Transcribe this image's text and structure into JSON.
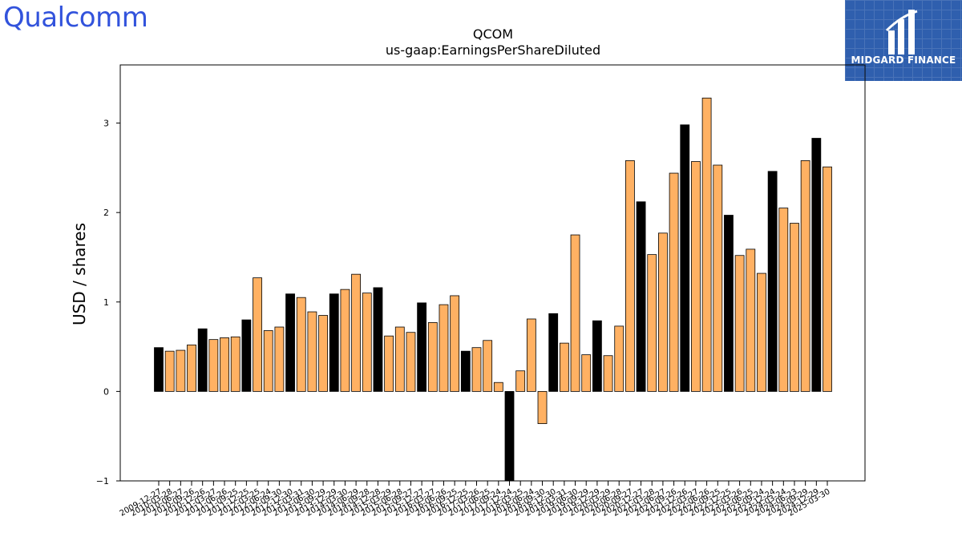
{
  "brand": {
    "logo_text": "Qualcomm",
    "badge_text": "MIDGARD FINANCE",
    "badge_icon": "midgard-logo-icon"
  },
  "colors": {
    "annual": "#000000",
    "quarterly": "#ffb163",
    "brand_blue": "#3253dc",
    "badge_bg": "#2f5fae"
  },
  "chart_data": {
    "type": "bar",
    "title": "QCOM",
    "subtitle": "us-gaap:EarningsPerShareDiluted",
    "xlabel": "",
    "ylabel": "USD / shares",
    "ylim": [
      -1.0,
      3.65
    ],
    "yticks": [
      -1,
      0,
      1,
      2,
      3
    ],
    "grid": false,
    "categories": [
      "2009-12-27",
      "2010-03-28",
      "2010-06-27",
      "2010-09-26",
      "2010-12-26",
      "2011-03-27",
      "2011-06-26",
      "2011-09-25",
      "2011-12-25",
      "2012-03-25",
      "2012-06-24",
      "2012-09-30",
      "2012-12-30",
      "2013-03-31",
      "2013-06-30",
      "2013-09-29",
      "2013-12-29",
      "2014-03-30",
      "2014-06-29",
      "2014-09-28",
      "2014-12-28",
      "2015-03-29",
      "2015-06-28",
      "2015-09-27",
      "2015-12-27",
      "2016-03-27",
      "2016-06-26",
      "2016-09-25",
      "2016-12-25",
      "2017-03-26",
      "2017-06-25",
      "2017-09-24",
      "2017-12-24",
      "2018-03-25",
      "2018-06-24",
      "2018-09-30",
      "2018-12-30",
      "2019-03-31",
      "2019-06-30",
      "2019-09-29",
      "2019-12-29",
      "2020-03-29",
      "2020-06-28",
      "2020-09-27",
      "2020-12-27",
      "2021-03-28",
      "2021-06-27",
      "2021-09-26",
      "2021-12-26",
      "2022-03-27",
      "2022-06-26",
      "2022-09-25",
      "2022-12-25",
      "2023-03-26",
      "2023-06-25",
      "2023-09-24",
      "2023-12-24",
      "2024-03-24",
      "2024-06-23",
      "2024-09-29",
      "2024-12-29",
      "2025-03-30"
    ],
    "values": [
      0.49,
      0.45,
      0.46,
      0.52,
      0.7,
      0.58,
      0.6,
      0.61,
      0.8,
      1.27,
      0.68,
      0.72,
      1.09,
      1.05,
      0.89,
      0.85,
      1.09,
      1.14,
      1.31,
      1.1,
      1.16,
      0.62,
      0.72,
      0.66,
      0.99,
      0.77,
      0.97,
      1.07,
      0.45,
      0.49,
      0.57,
      0.1,
      -1.05,
      0.23,
      0.81,
      -0.36,
      0.87,
      0.54,
      1.75,
      0.41,
      0.79,
      0.4,
      0.73,
      2.58,
      2.12,
      1.53,
      1.77,
      2.44,
      2.98,
      2.57,
      3.28,
      2.53,
      1.97,
      1.52,
      1.59,
      1.32,
      2.46,
      2.05,
      1.88,
      2.58,
      2.83,
      2.51
    ],
    "annual": [
      true,
      false,
      false,
      false,
      true,
      false,
      false,
      false,
      true,
      false,
      false,
      false,
      true,
      false,
      false,
      false,
      true,
      false,
      false,
      false,
      true,
      false,
      false,
      false,
      true,
      false,
      false,
      false,
      true,
      false,
      false,
      false,
      true,
      false,
      false,
      false,
      true,
      false,
      false,
      false,
      true,
      false,
      false,
      false,
      true,
      false,
      false,
      false,
      true,
      false,
      false,
      false,
      true,
      false,
      false,
      false,
      true,
      false,
      false,
      false,
      true,
      false
    ],
    "series_colors": {
      "annual": "#000000",
      "quarterly": "#ffb163"
    },
    "edge_color": "#000000",
    "legend": "none"
  }
}
